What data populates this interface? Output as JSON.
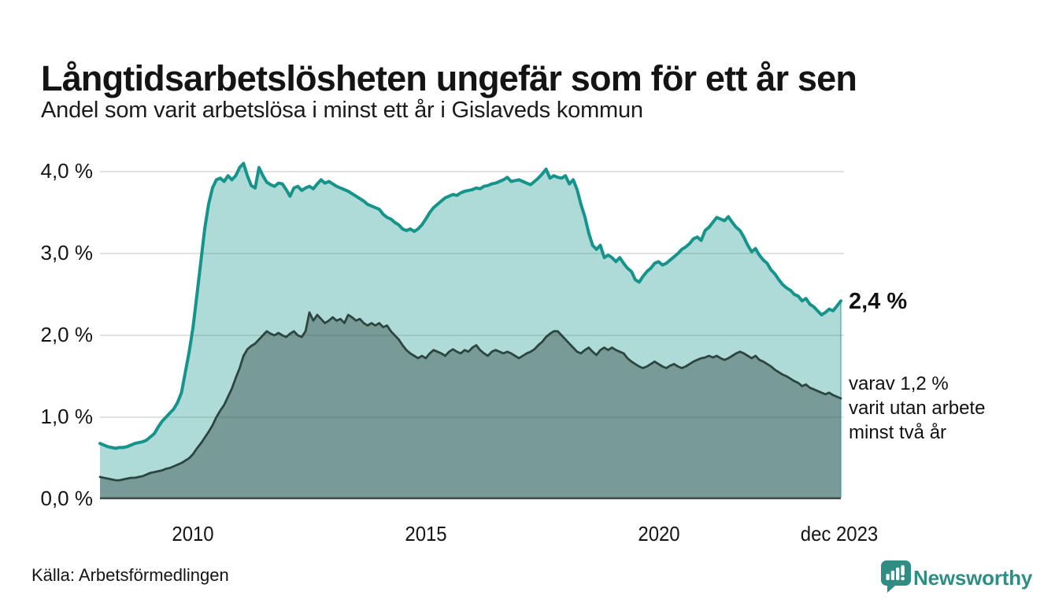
{
  "header": {
    "title": "Långtidsarbetslösheten ungefär som för ett år sen",
    "subtitle": "Andel som varit arbetslösa i minst ett år i Gislaveds kommun"
  },
  "footer": {
    "source": "Källa: Arbetsförmedlingen",
    "brand_wordmark": "Newsworthy"
  },
  "annotations": {
    "latest_total": "2,4 %",
    "latest_two_years_lines": [
      "varav 1,2 %",
      "varit utan arbete",
      "minst två år"
    ]
  },
  "colors": {
    "series1_line": "#16948c",
    "series1_fill": "rgba(22,148,140,0.35)",
    "series2_line": "#2d4541",
    "series2_fill": "rgba(45,69,65,0.42)",
    "grid": "#e2e2e2",
    "baseline": "#3c4a47",
    "text": "#141414",
    "brand": "#2f8d84"
  },
  "chart_data": {
    "type": "area",
    "title": "Långtidsarbetslösheten ungefär som för ett år sen",
    "subtitle": "Andel som varit arbetslösa i minst ett år i Gislaveds kommun",
    "x_unit": "month",
    "x_range": [
      "2008-01",
      "2023-12"
    ],
    "ylim": [
      0,
      4.3
    ],
    "grid": true,
    "y_ticks": [
      "0,0 %",
      "1,0 %",
      "2,0 %",
      "3,0 %",
      "4,0 %"
    ],
    "x_ticks": [
      {
        "label": "2010",
        "month_index": 24
      },
      {
        "label": "2015",
        "month_index": 84
      },
      {
        "label": "2020",
        "month_index": 144
      },
      {
        "label": "dec 2023",
        "month_index": 191
      }
    ],
    "series": [
      {
        "name": "Andel arbetslösa minst ett år",
        "end_label": "2,4 %",
        "values": [
          0.68,
          0.66,
          0.64,
          0.63,
          0.62,
          0.63,
          0.63,
          0.64,
          0.66,
          0.68,
          0.69,
          0.7,
          0.72,
          0.76,
          0.8,
          0.88,
          0.95,
          1.0,
          1.05,
          1.1,
          1.18,
          1.3,
          1.55,
          1.8,
          2.1,
          2.5,
          2.9,
          3.3,
          3.6,
          3.8,
          3.9,
          3.92,
          3.88,
          3.95,
          3.9,
          3.95,
          4.05,
          4.1,
          3.95,
          3.83,
          3.8,
          4.05,
          3.95,
          3.87,
          3.84,
          3.82,
          3.86,
          3.85,
          3.78,
          3.7,
          3.8,
          3.82,
          3.77,
          3.8,
          3.82,
          3.79,
          3.85,
          3.9,
          3.86,
          3.88,
          3.85,
          3.82,
          3.8,
          3.78,
          3.76,
          3.73,
          3.7,
          3.67,
          3.64,
          3.6,
          3.58,
          3.56,
          3.54,
          3.48,
          3.44,
          3.42,
          3.38,
          3.35,
          3.3,
          3.28,
          3.3,
          3.27,
          3.3,
          3.35,
          3.42,
          3.5,
          3.56,
          3.6,
          3.64,
          3.68,
          3.7,
          3.72,
          3.71,
          3.74,
          3.76,
          3.77,
          3.78,
          3.8,
          3.79,
          3.82,
          3.83,
          3.85,
          3.86,
          3.88,
          3.9,
          3.93,
          3.88,
          3.89,
          3.9,
          3.88,
          3.86,
          3.84,
          3.88,
          3.92,
          3.97,
          4.03,
          3.92,
          3.95,
          3.93,
          3.92,
          3.95,
          3.85,
          3.9,
          3.78,
          3.6,
          3.45,
          3.25,
          3.1,
          3.05,
          3.1,
          2.95,
          2.98,
          2.95,
          2.9,
          2.95,
          2.88,
          2.82,
          2.78,
          2.68,
          2.65,
          2.72,
          2.78,
          2.82,
          2.88,
          2.9,
          2.86,
          2.88,
          2.92,
          2.96,
          3.0,
          3.05,
          3.08,
          3.12,
          3.18,
          3.2,
          3.16,
          3.28,
          3.32,
          3.38,
          3.44,
          3.42,
          3.4,
          3.45,
          3.38,
          3.32,
          3.28,
          3.2,
          3.1,
          3.02,
          3.06,
          2.98,
          2.92,
          2.88,
          2.8,
          2.75,
          2.68,
          2.62,
          2.58,
          2.55,
          2.5,
          2.48,
          2.42,
          2.45,
          2.38,
          2.35,
          2.3,
          2.25,
          2.28,
          2.32,
          2.3,
          2.36,
          2.42
        ]
      },
      {
        "name": "Varav arbetslösa minst två år",
        "end_label": "varav 1,2 % varit utan arbete minst två år",
        "values": [
          0.27,
          0.26,
          0.25,
          0.24,
          0.23,
          0.23,
          0.24,
          0.25,
          0.26,
          0.26,
          0.27,
          0.28,
          0.3,
          0.32,
          0.33,
          0.34,
          0.35,
          0.37,
          0.38,
          0.4,
          0.42,
          0.44,
          0.47,
          0.5,
          0.55,
          0.62,
          0.68,
          0.75,
          0.82,
          0.9,
          1.0,
          1.08,
          1.15,
          1.25,
          1.35,
          1.48,
          1.6,
          1.75,
          1.83,
          1.87,
          1.9,
          1.95,
          2.0,
          2.05,
          2.02,
          2.0,
          2.03,
          2.0,
          1.98,
          2.02,
          2.05,
          2.0,
          1.98,
          2.05,
          2.28,
          2.18,
          2.25,
          2.2,
          2.15,
          2.18,
          2.22,
          2.18,
          2.2,
          2.15,
          2.25,
          2.22,
          2.18,
          2.2,
          2.15,
          2.12,
          2.15,
          2.12,
          2.15,
          2.1,
          2.12,
          2.05,
          2.0,
          1.95,
          1.88,
          1.82,
          1.78,
          1.75,
          1.72,
          1.75,
          1.72,
          1.78,
          1.82,
          1.8,
          1.78,
          1.75,
          1.8,
          1.83,
          1.8,
          1.78,
          1.82,
          1.8,
          1.85,
          1.88,
          1.82,
          1.78,
          1.75,
          1.8,
          1.82,
          1.8,
          1.78,
          1.8,
          1.78,
          1.75,
          1.72,
          1.75,
          1.78,
          1.8,
          1.83,
          1.88,
          1.92,
          1.98,
          2.02,
          2.05,
          2.05,
          2.0,
          1.95,
          1.9,
          1.85,
          1.8,
          1.78,
          1.82,
          1.85,
          1.8,
          1.76,
          1.82,
          1.85,
          1.82,
          1.85,
          1.82,
          1.8,
          1.78,
          1.72,
          1.68,
          1.65,
          1.62,
          1.6,
          1.62,
          1.65,
          1.68,
          1.65,
          1.62,
          1.6,
          1.63,
          1.65,
          1.62,
          1.6,
          1.62,
          1.65,
          1.68,
          1.7,
          1.72,
          1.73,
          1.75,
          1.73,
          1.75,
          1.72,
          1.7,
          1.72,
          1.75,
          1.78,
          1.8,
          1.78,
          1.75,
          1.72,
          1.75,
          1.7,
          1.68,
          1.65,
          1.62,
          1.58,
          1.55,
          1.52,
          1.5,
          1.47,
          1.44,
          1.42,
          1.38,
          1.4,
          1.36,
          1.34,
          1.32,
          1.3,
          1.28,
          1.3,
          1.27,
          1.25,
          1.23
        ]
      }
    ]
  }
}
